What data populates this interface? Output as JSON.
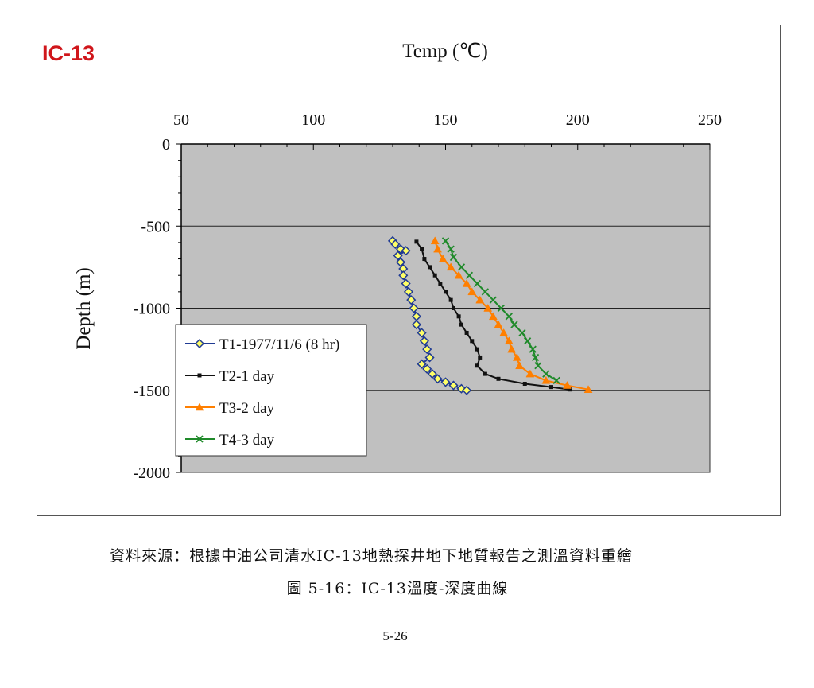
{
  "well_label": "IC-13",
  "source_note": "資料來源：根據中油公司清水IC-13地熱探井地下地質報告之測溫資料重繪",
  "figure_caption": "圖  5-16：IC-13溫度-深度曲線",
  "page_number": "5-26",
  "chart_data": {
    "type": "line",
    "title": "Temp (℃)",
    "xlabel": "Temp (℃)",
    "ylabel": "Depth (m)",
    "xlim": [
      50,
      250
    ],
    "ylim": [
      -2000,
      0
    ],
    "x_ticks": [
      50,
      100,
      150,
      200,
      250
    ],
    "y_ticks": [
      0,
      -500,
      -1000,
      -1500,
      -2000
    ],
    "x_axis_position": "top",
    "plot_background": "#c0c0c0",
    "grid": "horizontal major gridlines",
    "legend_position": "left",
    "series": [
      {
        "name": "T1-1977/11/6 (8 hr)",
        "color": "#1f3a93",
        "marker": "diamond",
        "points": [
          [
            130,
            -590
          ],
          [
            131,
            -610
          ],
          [
            133,
            -640
          ],
          [
            135,
            -650
          ],
          [
            132,
            -680
          ],
          [
            133,
            -720
          ],
          [
            134,
            -760
          ],
          [
            134,
            -800
          ],
          [
            135,
            -850
          ],
          [
            136,
            -900
          ],
          [
            137,
            -950
          ],
          [
            138,
            -1000
          ],
          [
            139,
            -1050
          ],
          [
            139,
            -1100
          ],
          [
            141,
            -1150
          ],
          [
            142,
            -1200
          ],
          [
            143,
            -1250
          ],
          [
            144,
            -1300
          ],
          [
            141,
            -1340
          ],
          [
            143,
            -1370
          ],
          [
            145,
            -1400
          ],
          [
            147,
            -1430
          ],
          [
            150,
            -1450
          ],
          [
            153,
            -1470
          ],
          [
            156,
            -1490
          ],
          [
            158,
            -1500
          ]
        ]
      },
      {
        "name": "T2-1 day",
        "color": "#111111",
        "marker": "square",
        "points": [
          [
            139,
            -595
          ],
          [
            141,
            -640
          ],
          [
            142,
            -700
          ],
          [
            144,
            -750
          ],
          [
            146,
            -800
          ],
          [
            148,
            -850
          ],
          [
            150,
            -900
          ],
          [
            152,
            -950
          ],
          [
            153,
            -1000
          ],
          [
            155,
            -1050
          ],
          [
            156,
            -1100
          ],
          [
            158,
            -1150
          ],
          [
            160,
            -1200
          ],
          [
            162,
            -1250
          ],
          [
            163,
            -1300
          ],
          [
            162,
            -1350
          ],
          [
            165,
            -1400
          ],
          [
            170,
            -1430
          ],
          [
            180,
            -1460
          ],
          [
            190,
            -1480
          ],
          [
            197,
            -1495
          ]
        ]
      },
      {
        "name": "T3-2 day",
        "color": "#ff7f00",
        "marker": "triangle",
        "points": [
          [
            146,
            -590
          ],
          [
            147,
            -640
          ],
          [
            149,
            -700
          ],
          [
            152,
            -750
          ],
          [
            155,
            -800
          ],
          [
            158,
            -850
          ],
          [
            160,
            -900
          ],
          [
            163,
            -950
          ],
          [
            166,
            -1000
          ],
          [
            168,
            -1050
          ],
          [
            170,
            -1100
          ],
          [
            172,
            -1150
          ],
          [
            174,
            -1200
          ],
          [
            175,
            -1250
          ],
          [
            177,
            -1300
          ],
          [
            178,
            -1350
          ],
          [
            182,
            -1400
          ],
          [
            188,
            -1440
          ],
          [
            196,
            -1470
          ],
          [
            204,
            -1495
          ]
        ]
      },
      {
        "name": "T4-3 day",
        "color": "#1f8a2a",
        "marker": "x",
        "points": [
          [
            150,
            -590
          ],
          [
            152,
            -640
          ],
          [
            153,
            -690
          ],
          [
            156,
            -750
          ],
          [
            159,
            -800
          ],
          [
            162,
            -850
          ],
          [
            165,
            -900
          ],
          [
            168,
            -950
          ],
          [
            171,
            -1000
          ],
          [
            174,
            -1050
          ],
          [
            176,
            -1100
          ],
          [
            179,
            -1150
          ],
          [
            181,
            -1200
          ],
          [
            183,
            -1250
          ],
          [
            184,
            -1300
          ],
          [
            185,
            -1350
          ],
          [
            188,
            -1400
          ],
          [
            192,
            -1440
          ]
        ]
      }
    ]
  }
}
